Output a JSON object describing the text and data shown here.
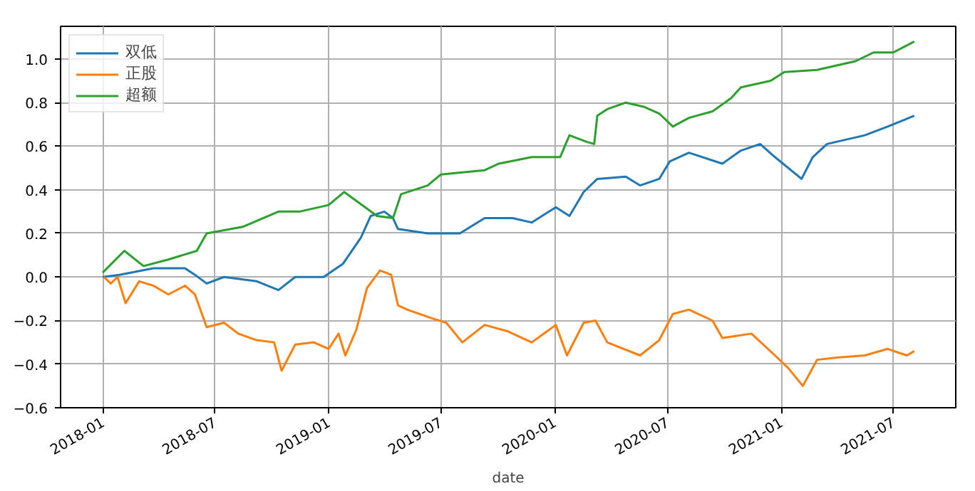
{
  "chart_data": {
    "type": "line",
    "xlabel": "date",
    "xlim": [
      "2017-10-25",
      "2021-10-10"
    ],
    "ylim": [
      -0.6,
      1.15
    ],
    "xticks": [
      "2018-01",
      "2018-07",
      "2019-01",
      "2019-07",
      "2020-01",
      "2020-07",
      "2021-01",
      "2021-07"
    ],
    "yticks": [
      {
        "value": -0.6,
        "label": "−0.6"
      },
      {
        "value": -0.4,
        "label": "−0.4"
      },
      {
        "value": -0.2,
        "label": "−0.2"
      },
      {
        "value": 0,
        "label": "0.0"
      },
      {
        "value": 0.2,
        "label": "0.2"
      },
      {
        "value": 0.4,
        "label": "0.4"
      },
      {
        "value": 0.6,
        "label": "0.6"
      },
      {
        "value": 0.8,
        "label": "0.8"
      },
      {
        "value": 1,
        "label": "1.0"
      }
    ],
    "grid": true,
    "legend": "top left",
    "line_style": "solid",
    "series": [
      {
        "name": "双低",
        "color": "#1f77b4",
        "x": [
          "2018-01-01",
          "2018-01-28",
          "2018-03-24",
          "2018-05-14",
          "2018-05-30",
          "2018-06-18",
          "2018-07-16",
          "2018-09-07",
          "2018-10-12",
          "2018-11-08",
          "2018-12-24",
          "2019-01-24",
          "2019-02-22",
          "2019-03-10",
          "2019-04-01",
          "2019-04-15",
          "2019-04-23",
          "2019-06-10",
          "2019-08-01",
          "2019-09-10",
          "2019-10-25",
          "2019-11-25",
          "2020-01-03",
          "2020-01-25",
          "2020-02-17",
          "2020-03-10",
          "2020-04-25",
          "2020-05-18",
          "2020-06-18",
          "2020-07-05",
          "2020-08-05",
          "2020-09-28",
          "2020-10-28",
          "2020-11-28",
          "2020-12-22",
          "2021-02-03",
          "2021-02-21",
          "2021-03-16",
          "2021-05-16",
          "2021-06-22",
          "2021-08-04"
        ],
        "values": [
          0.0,
          0.01,
          0.04,
          0.04,
          0.01,
          -0.03,
          0.0,
          -0.02,
          -0.06,
          0.0,
          0.0,
          0.06,
          0.18,
          0.28,
          0.3,
          0.27,
          0.22,
          0.2,
          0.2,
          0.27,
          0.27,
          0.25,
          0.32,
          0.28,
          0.39,
          0.45,
          0.46,
          0.42,
          0.45,
          0.53,
          0.57,
          0.52,
          0.58,
          0.61,
          0.55,
          0.45,
          0.55,
          0.61,
          0.65,
          0.69,
          0.74
        ]
      },
      {
        "name": "正股",
        "color": "#ff7f0e",
        "x": [
          "2018-01-03",
          "2018-01-14",
          "2018-01-25",
          "2018-02-07",
          "2018-03-01",
          "2018-03-24",
          "2018-04-17",
          "2018-05-14",
          "2018-05-30",
          "2018-06-18",
          "2018-07-16",
          "2018-08-08",
          "2018-09-07",
          "2018-10-05",
          "2018-10-17",
          "2018-11-08",
          "2018-12-08",
          "2019-01-01",
          "2019-01-17",
          "2019-01-28",
          "2019-02-15",
          "2019-03-04",
          "2019-03-25",
          "2019-04-12",
          "2019-04-23",
          "2019-05-08",
          "2019-06-17",
          "2019-07-10",
          "2019-08-05",
          "2019-09-10",
          "2019-10-18",
          "2019-11-25",
          "2020-01-03",
          "2020-01-21",
          "2020-02-17",
          "2020-03-07",
          "2020-03-26",
          "2020-05-18",
          "2020-06-18",
          "2020-07-10",
          "2020-08-05",
          "2020-09-12",
          "2020-09-28",
          "2020-11-14",
          "2020-12-22",
          "2021-01-13",
          "2021-02-05",
          "2021-02-28",
          "2021-04-01",
          "2021-05-16",
          "2021-06-22",
          "2021-07-23",
          "2021-08-04"
        ],
        "values": [
          0.0,
          -0.03,
          0.0,
          -0.12,
          -0.02,
          -0.04,
          -0.08,
          -0.04,
          -0.08,
          -0.23,
          -0.21,
          -0.26,
          -0.29,
          -0.3,
          -0.43,
          -0.31,
          -0.3,
          -0.33,
          -0.26,
          -0.36,
          -0.24,
          -0.05,
          0.03,
          0.01,
          -0.13,
          -0.15,
          -0.19,
          -0.21,
          -0.3,
          -0.22,
          -0.25,
          -0.3,
          -0.22,
          -0.36,
          -0.21,
          -0.2,
          -0.3,
          -0.36,
          -0.29,
          -0.17,
          -0.15,
          -0.2,
          -0.28,
          -0.26,
          -0.36,
          -0.42,
          -0.5,
          -0.38,
          -0.37,
          -0.36,
          -0.33,
          -0.36,
          -0.34
        ]
      },
      {
        "name": "超额",
        "color": "#2ca02c",
        "x": [
          "2018-01-01",
          "2018-02-05",
          "2018-03-08",
          "2018-04-17",
          "2018-06-02",
          "2018-06-18",
          "2018-08-15",
          "2018-10-12",
          "2018-11-15",
          "2019-01-01",
          "2019-01-26",
          "2019-03-20",
          "2019-04-15",
          "2019-04-28",
          "2019-06-10",
          "2019-07-01",
          "2019-08-05",
          "2019-09-10",
          "2019-10-03",
          "2019-11-25",
          "2020-01-10",
          "2020-01-25",
          "2020-02-22",
          "2020-03-05",
          "2020-03-10",
          "2020-03-26",
          "2020-04-25",
          "2020-05-25",
          "2020-06-18",
          "2020-07-10",
          "2020-08-05",
          "2020-09-12",
          "2020-10-12",
          "2020-10-28",
          "2020-12-15",
          "2021-01-06",
          "2021-02-28",
          "2021-05-01",
          "2021-05-30",
          "2021-07-01",
          "2021-08-04"
        ],
        "values": [
          0.02,
          0.12,
          0.05,
          0.08,
          0.12,
          0.2,
          0.23,
          0.3,
          0.3,
          0.33,
          0.39,
          0.28,
          0.27,
          0.38,
          0.42,
          0.47,
          0.48,
          0.49,
          0.52,
          0.55,
          0.55,
          0.65,
          0.62,
          0.61,
          0.74,
          0.77,
          0.8,
          0.78,
          0.75,
          0.69,
          0.73,
          0.76,
          0.82,
          0.87,
          0.9,
          0.94,
          0.95,
          0.99,
          1.03,
          1.03,
          1.08
        ]
      }
    ]
  }
}
